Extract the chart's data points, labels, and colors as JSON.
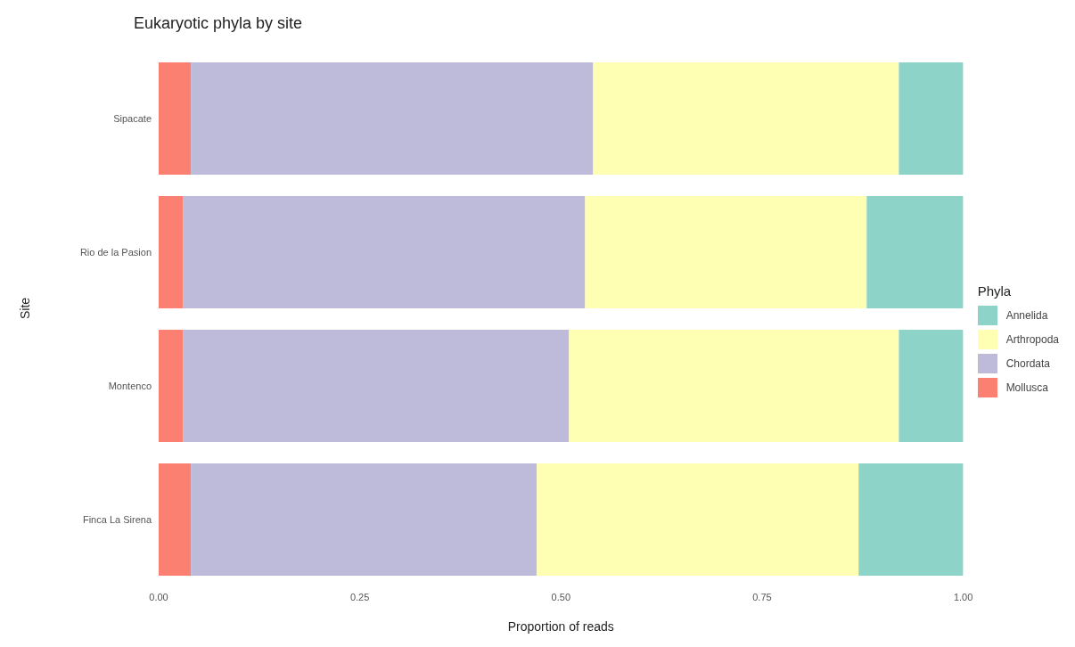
{
  "chart_data": {
    "type": "bar",
    "orientation": "horizontal",
    "stacked": true,
    "title": "Eukaryotic phyla by site",
    "xlabel": "Proportion of reads",
    "ylabel": "Site",
    "legend_title": "Phyla",
    "legend": "right",
    "grid": false,
    "categories": [
      "Sipacate",
      "Rio de la Pasion",
      "Montenco",
      "Finca La Sirena"
    ],
    "series": [
      {
        "name": "Mollusca",
        "color": "#fb8072",
        "values": [
          0.04,
          0.03,
          0.03,
          0.04
        ]
      },
      {
        "name": "Chordata",
        "color": "#bebada",
        "values": [
          0.5,
          0.5,
          0.48,
          0.43
        ]
      },
      {
        "name": "Arthropoda",
        "color": "#ffffb3",
        "values": [
          0.38,
          0.35,
          0.41,
          0.4
        ]
      },
      {
        "name": "Annelida",
        "color": "#8dd3c7",
        "values": [
          0.08,
          0.12,
          0.08,
          0.13
        ]
      }
    ],
    "xlim": [
      0,
      1
    ],
    "xticks": [
      {
        "value": 0,
        "label": "0.00"
      },
      {
        "value": 0.25,
        "label": "0.25"
      },
      {
        "value": 0.5,
        "label": "0.50"
      },
      {
        "value": 0.75,
        "label": "0.75"
      },
      {
        "value": 1,
        "label": "1.00"
      }
    ]
  }
}
